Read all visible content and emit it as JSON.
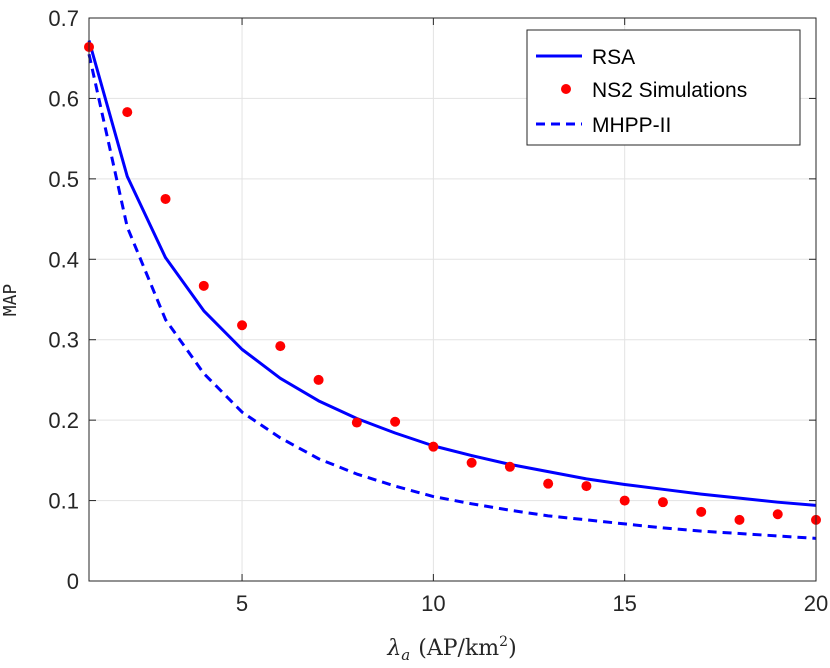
{
  "chart_data": {
    "type": "line",
    "title": "",
    "xlabel": {
      "symbol": "λ",
      "subscript": "a",
      "unit_prefix": "(AP/km",
      "unit_power": "2",
      "unit_suffix": ")"
    },
    "ylabel": "MAP",
    "xlim": [
      1,
      20
    ],
    "ylim": [
      0,
      0.7
    ],
    "xticks": [
      5,
      10,
      15,
      20
    ],
    "yticks": [
      0,
      0.1,
      0.2,
      0.3,
      0.4,
      0.5,
      0.6,
      0.7
    ],
    "grid": true,
    "legend_position": "top-right",
    "x": [
      1,
      2,
      3,
      4,
      5,
      6,
      7,
      8,
      9,
      10,
      11,
      12,
      13,
      14,
      15,
      16,
      17,
      18,
      19,
      20
    ],
    "series": [
      {
        "name": "RSA",
        "style": "solid",
        "color": "#0000ff",
        "values": [
          0.672,
          0.503,
          0.402,
          0.336,
          0.288,
          0.252,
          0.224,
          0.202,
          0.184,
          0.168,
          0.156,
          0.145,
          0.136,
          0.127,
          0.12,
          0.114,
          0.108,
          0.103,
          0.098,
          0.094
        ]
      },
      {
        "name": "NS2 Simulations",
        "style": "markers",
        "color": "#ff0000",
        "values": [
          0.664,
          0.583,
          0.475,
          0.367,
          0.318,
          0.292,
          0.25,
          0.197,
          0.198,
          0.167,
          0.147,
          0.142,
          0.121,
          0.118,
          0.1,
          0.098,
          0.086,
          0.076,
          0.083,
          0.076
        ]
      },
      {
        "name": "MHPP-II",
        "style": "dashed",
        "color": "#0000ff",
        "values": [
          0.655,
          0.44,
          0.325,
          0.258,
          0.21,
          0.178,
          0.152,
          0.133,
          0.118,
          0.105,
          0.096,
          0.088,
          0.081,
          0.076,
          0.071,
          0.066,
          0.062,
          0.059,
          0.056,
          0.053
        ]
      }
    ]
  }
}
